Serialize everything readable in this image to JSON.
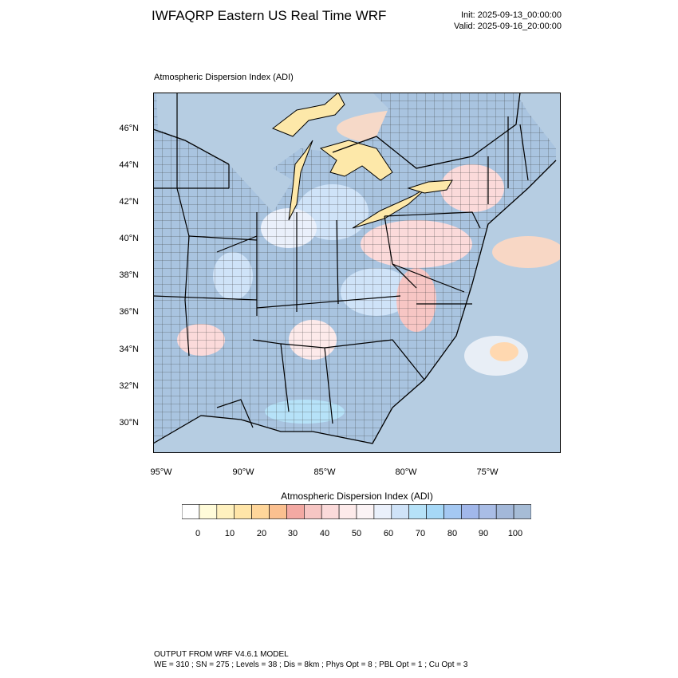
{
  "header": {
    "title": "IWFAQRP Eastern US Real Time WRF",
    "init": "Init: 2025-09-13_00:00:00",
    "valid": "Valid: 2025-09-16_20:00:00"
  },
  "field": {
    "label": "Atmospheric Dispersion Index   (ADI)"
  },
  "map": {
    "lat_ticks": [
      "46°N",
      "44°N",
      "42°N",
      "40°N",
      "38°N",
      "36°N",
      "34°N",
      "32°N",
      "30°N"
    ],
    "lon_ticks": [
      "95°W",
      "90°W",
      "85°W",
      "80°W",
      "75°W"
    ],
    "colors": {
      "land_base": "#a9c4e0",
      "ocean": "#b6cde2",
      "lake": "#fde8a9",
      "border": "#000000"
    }
  },
  "colorbar": {
    "title": "Atmospheric Dispersion Index  (ADI)",
    "labels": [
      "0",
      "10",
      "20",
      "30",
      "40",
      "50",
      "60",
      "70",
      "80",
      "90",
      "100"
    ],
    "colors": [
      "#ffffff",
      "#fffbd9",
      "#fff1bf",
      "#ffe5a8",
      "#ffd69a",
      "#fbc090",
      "#f3a9a3",
      "#f7c6c4",
      "#fbdada",
      "#fdeaea",
      "#fbf3f5",
      "#eaf0fb",
      "#cfe3f8",
      "#b6e2f8",
      "#a6d8f7",
      "#a4c8f2",
      "#a1b7ea",
      "#a9bde6",
      "#a3b8d9",
      "#a6bcd6"
    ]
  },
  "footer": {
    "line1": "OUTPUT FROM WRF V4.6.1 MODEL",
    "line2": "WE = 310 ; SN = 275 ; Levels = 38 ; Dis = 8km ; Phys Opt = 8 ; PBL Opt = 1 ; Cu Opt = 3"
  }
}
